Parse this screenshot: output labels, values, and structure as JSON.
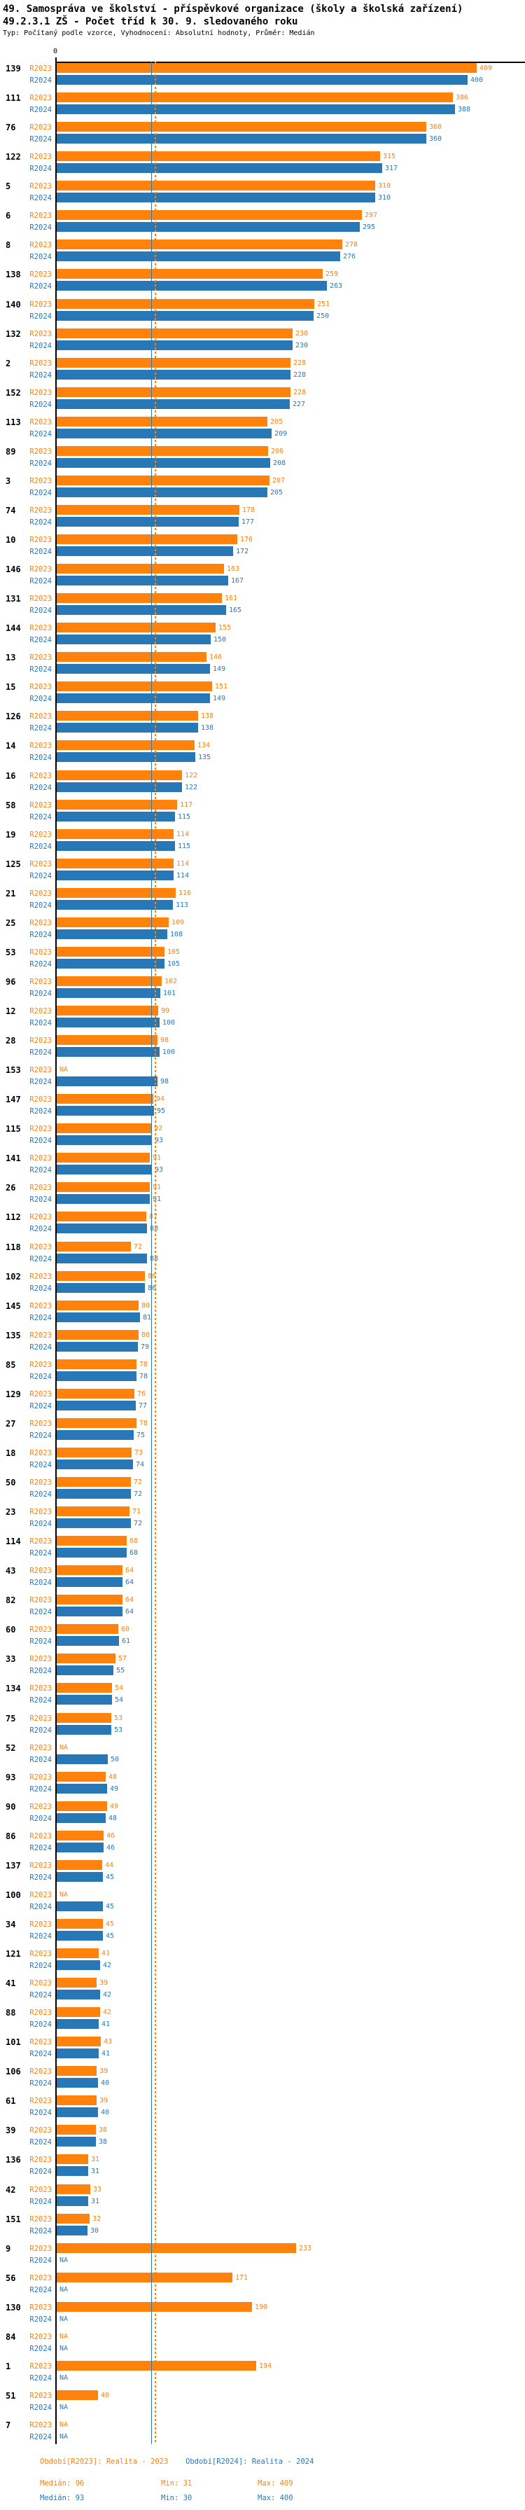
{
  "header": {
    "line1": "49. Samospráva ve školství - příspěvkové organizace (školy a školská zařízení)",
    "line2": "49.2.3.1 ZŠ - Počet tříd k 30. 9. sledovaného roku",
    "line3": "Typ: Počítaný podle vzorce, Vyhodnocení: Absolutní hodnoty, Průměr: Medián"
  },
  "legend": {
    "period_r2023": "Období[R2023]: Realita - 2023",
    "period_r2024": "Období[R2024]: Realita - 2024",
    "r2023_median": "Medián: 96",
    "r2023_min": "Min: 31",
    "r2023_max": "Max: 409",
    "r2024_median": "Medián: 93",
    "r2024_min": "Min: 30",
    "r2024_max": "Max: 400"
  },
  "chart_data": {
    "type": "bar",
    "orientation": "horizontal",
    "title": "49.2.3.1 ZŠ - Počet tříd k 30. 9. sledovaného roku",
    "series": [
      "R2023",
      "R2024"
    ],
    "colors": {
      "R2023": "#ff820d",
      "R2024": "#2878b8"
    },
    "na_label": "NA",
    "axis_zero_label": "0",
    "xlim": [
      0,
      450
    ],
    "grid": false,
    "medians": {
      "R2023": 96,
      "R2024": 93
    },
    "stats": {
      "R2023": {
        "median": 96,
        "min": 31,
        "max": 409
      },
      "R2024": {
        "median": 93,
        "min": 30,
        "max": 400
      }
    },
    "rows": [
      {
        "category": "139",
        "R2023": 409,
        "R2024": 400
      },
      {
        "category": "111",
        "R2023": 386,
        "R2024": 388
      },
      {
        "category": "76",
        "R2023": 360,
        "R2024": 360
      },
      {
        "category": "122",
        "R2023": 315,
        "R2024": 317
      },
      {
        "category": "5",
        "R2023": 310,
        "R2024": 310
      },
      {
        "category": "6",
        "R2023": 297,
        "R2024": 295
      },
      {
        "category": "8",
        "R2023": 278,
        "R2024": 276
      },
      {
        "category": "138",
        "R2023": 259,
        "R2024": 263
      },
      {
        "category": "140",
        "R2023": 251,
        "R2024": 250
      },
      {
        "category": "132",
        "R2023": 230,
        "R2024": 230
      },
      {
        "category": "2",
        "R2023": 228,
        "R2024": 228
      },
      {
        "category": "152",
        "R2023": 228,
        "R2024": 227
      },
      {
        "category": "113",
        "R2023": 205,
        "R2024": 209
      },
      {
        "category": "89",
        "R2023": 206,
        "R2024": 208
      },
      {
        "category": "3",
        "R2023": 207,
        "R2024": 205
      },
      {
        "category": "74",
        "R2023": 178,
        "R2024": 177
      },
      {
        "category": "10",
        "R2023": 176,
        "R2024": 172
      },
      {
        "category": "146",
        "R2023": 163,
        "R2024": 167
      },
      {
        "category": "131",
        "R2023": 161,
        "R2024": 165
      },
      {
        "category": "144",
        "R2023": 155,
        "R2024": 150
      },
      {
        "category": "13",
        "R2023": 146,
        "R2024": 149
      },
      {
        "category": "15",
        "R2023": 151,
        "R2024": 149
      },
      {
        "category": "126",
        "R2023": 138,
        "R2024": 138
      },
      {
        "category": "14",
        "R2023": 134,
        "R2024": 135
      },
      {
        "category": "16",
        "R2023": 122,
        "R2024": 122
      },
      {
        "category": "58",
        "R2023": 117,
        "R2024": 115
      },
      {
        "category": "19",
        "R2023": 114,
        "R2024": 115
      },
      {
        "category": "125",
        "R2023": 114,
        "R2024": 114
      },
      {
        "category": "21",
        "R2023": 116,
        "R2024": 113
      },
      {
        "category": "25",
        "R2023": 109,
        "R2024": 108
      },
      {
        "category": "53",
        "R2023": 105,
        "R2024": 105
      },
      {
        "category": "96",
        "R2023": 102,
        "R2024": 101
      },
      {
        "category": "12",
        "R2023": 99,
        "R2024": 100
      },
      {
        "category": "28",
        "R2023": 98,
        "R2024": 100
      },
      {
        "category": "153",
        "R2023": null,
        "R2024": 98
      },
      {
        "category": "147",
        "R2023": 94,
        "R2024": 95
      },
      {
        "category": "115",
        "R2023": 92,
        "R2024": 93
      },
      {
        "category": "141",
        "R2023": 91,
        "R2024": 93
      },
      {
        "category": "26",
        "R2023": 91,
        "R2024": 91
      },
      {
        "category": "112",
        "R2023": 87,
        "R2024": 88
      },
      {
        "category": "118",
        "R2023": 72,
        "R2024": 88
      },
      {
        "category": "102",
        "R2023": 86,
        "R2024": 86
      },
      {
        "category": "145",
        "R2023": 80,
        "R2024": 81
      },
      {
        "category": "135",
        "R2023": 80,
        "R2024": 79
      },
      {
        "category": "85",
        "R2023": 78,
        "R2024": 78
      },
      {
        "category": "129",
        "R2023": 76,
        "R2024": 77
      },
      {
        "category": "27",
        "R2023": 78,
        "R2024": 75
      },
      {
        "category": "18",
        "R2023": 73,
        "R2024": 74
      },
      {
        "category": "50",
        "R2023": 72,
        "R2024": 72
      },
      {
        "category": "23",
        "R2023": 71,
        "R2024": 72
      },
      {
        "category": "114",
        "R2023": 68,
        "R2024": 68
      },
      {
        "category": "43",
        "R2023": 64,
        "R2024": 64
      },
      {
        "category": "82",
        "R2023": 64,
        "R2024": 64
      },
      {
        "category": "60",
        "R2023": 60,
        "R2024": 61
      },
      {
        "category": "33",
        "R2023": 57,
        "R2024": 55
      },
      {
        "category": "134",
        "R2023": 54,
        "R2024": 54
      },
      {
        "category": "75",
        "R2023": 53,
        "R2024": 53
      },
      {
        "category": "52",
        "R2023": null,
        "R2024": 50
      },
      {
        "category": "93",
        "R2023": 48,
        "R2024": 49
      },
      {
        "category": "90",
        "R2023": 49,
        "R2024": 48
      },
      {
        "category": "86",
        "R2023": 46,
        "R2024": 46
      },
      {
        "category": "137",
        "R2023": 44,
        "R2024": 45
      },
      {
        "category": "100",
        "R2023": null,
        "R2024": 45
      },
      {
        "category": "34",
        "R2023": 45,
        "R2024": 45
      },
      {
        "category": "121",
        "R2023": 41,
        "R2024": 42
      },
      {
        "category": "41",
        "R2023": 39,
        "R2024": 42
      },
      {
        "category": "88",
        "R2023": 42,
        "R2024": 41
      },
      {
        "category": "101",
        "R2023": 43,
        "R2024": 41
      },
      {
        "category": "106",
        "R2023": 39,
        "R2024": 40
      },
      {
        "category": "61",
        "R2023": 39,
        "R2024": 40
      },
      {
        "category": "39",
        "R2023": 38,
        "R2024": 38
      },
      {
        "category": "136",
        "R2023": 31,
        "R2024": 31
      },
      {
        "category": "42",
        "R2023": 33,
        "R2024": 31
      },
      {
        "category": "151",
        "R2023": 32,
        "R2024": 30
      },
      {
        "category": "9",
        "R2023": 233,
        "R2024": null
      },
      {
        "category": "56",
        "R2023": 171,
        "R2024": null
      },
      {
        "category": "130",
        "R2023": 190,
        "R2024": null
      },
      {
        "category": "84",
        "R2023": null,
        "R2024": null
      },
      {
        "category": "1",
        "R2023": 194,
        "R2024": null
      },
      {
        "category": "51",
        "R2023": 40,
        "R2024": null
      },
      {
        "category": "7",
        "R2023": null,
        "R2024": null
      }
    ]
  }
}
